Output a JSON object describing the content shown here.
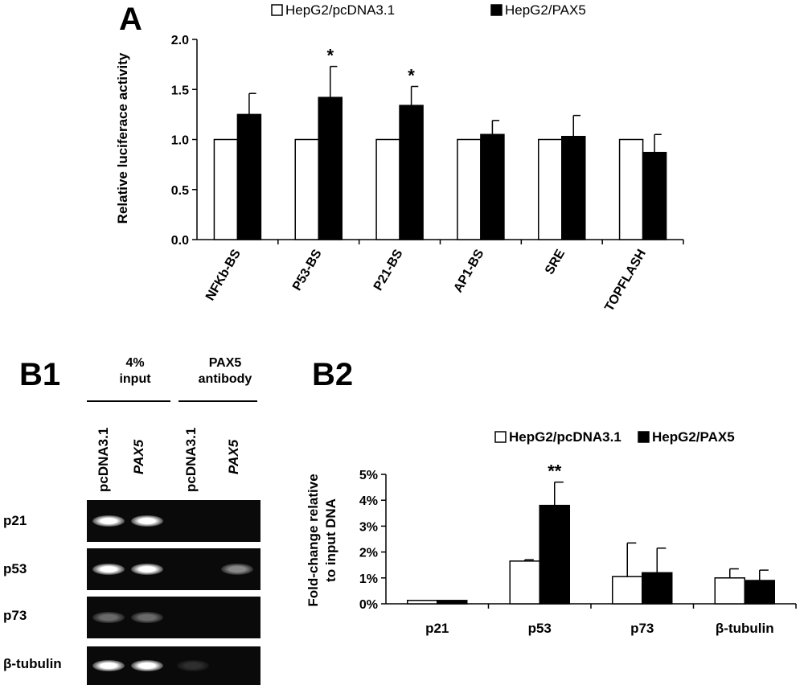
{
  "panel_labels": {
    "a": "A",
    "b1": "B1",
    "b2": "B2"
  },
  "chart_data": [
    {
      "id": "A",
      "type": "bar",
      "categories": [
        "NFKb-BS",
        "P53-BS",
        "P21-BS",
        "AP1-BS",
        "SRE",
        "TOPFLASH"
      ],
      "series": [
        {
          "name": "HepG2/pcDNA3.1",
          "values": [
            1.0,
            1.0,
            1.0,
            1.0,
            1.0,
            1.0
          ],
          "errors": [
            0,
            0,
            0,
            0,
            0,
            0
          ],
          "color": "#ffffff"
        },
        {
          "name": "HepG2/PAX5",
          "values": [
            1.25,
            1.42,
            1.34,
            1.05,
            1.03,
            0.87
          ],
          "errors": [
            0.21,
            0.31,
            0.19,
            0.14,
            0.21,
            0.18
          ],
          "color": "#000000"
        }
      ],
      "significance": [
        "",
        "*",
        "*",
        "",
        "",
        ""
      ],
      "ylabel": "Relative luciferace activity",
      "xlabel": "",
      "ylim": [
        0,
        2.0
      ],
      "yticks": [
        "0.0",
        "0.5",
        "1.0",
        "1.5",
        "2.0"
      ],
      "legend": "top"
    },
    {
      "id": "B2",
      "type": "bar",
      "categories": [
        "p21",
        "p53",
        "p73",
        "β-tubulin"
      ],
      "series": [
        {
          "name": "HepG2/pcDNA3.1",
          "values": [
            0.0013,
            0.0165,
            0.0105,
            0.01
          ],
          "errors": [
            0,
            0.0005,
            0.013,
            0.0035
          ],
          "color": "#ffffff"
        },
        {
          "name": "HepG2/PAX5",
          "values": [
            0.0013,
            0.038,
            0.012,
            0.009
          ],
          "errors": [
            0,
            0.009,
            0.0095,
            0.004
          ],
          "color": "#000000"
        }
      ],
      "significance": [
        "",
        "**",
        "",
        ""
      ],
      "ylabel": "Fold-change relative to input DNA",
      "ylabel_lines": [
        "Fold-change relative",
        "to input DNA"
      ],
      "xlabel": "",
      "ylim": [
        0,
        0.05
      ],
      "yticks": [
        "0%",
        "1%",
        "2%",
        "3%",
        "4%",
        "5%"
      ],
      "legend": "top"
    }
  ],
  "gel": {
    "group_headers": [
      {
        "lines": [
          "4%",
          "input"
        ]
      },
      {
        "lines": [
          "PAX5",
          "antibody"
        ]
      }
    ],
    "lanes": [
      {
        "label": "pcDNA3.1",
        "style": "bold"
      },
      {
        "label": "PAX5",
        "style": "italic"
      },
      {
        "label": "pcDNA3.1",
        "style": "bold"
      },
      {
        "label": "PAX5",
        "style": "italic"
      }
    ],
    "rows": [
      {
        "gene": "p21",
        "band_intensity": [
          1.0,
          1.0,
          0.0,
          0.0
        ]
      },
      {
        "gene": "p53",
        "band_intensity": [
          1.0,
          1.0,
          0.0,
          0.45
        ]
      },
      {
        "gene": "p73",
        "band_intensity": [
          0.3,
          0.3,
          0.0,
          0.0
        ]
      },
      {
        "gene": "β-tubulin",
        "band_intensity": [
          1.0,
          1.0,
          0.03,
          0.0
        ]
      }
    ]
  }
}
